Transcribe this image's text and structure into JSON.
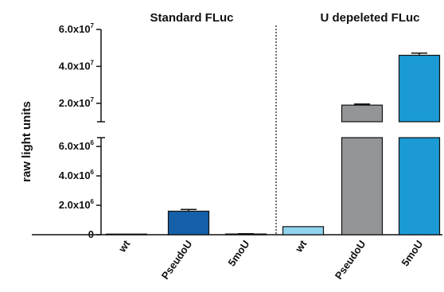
{
  "chart_data": {
    "type": "bar",
    "ylabel": "raw light units",
    "y_scale": "broken linear axis (segment break between 6.0x10^6 and 1.0x10^7)",
    "groups": [
      {
        "title": "Standard FLuc",
        "categories": [
          "wt",
          "PseudoU",
          "5moU"
        ]
      },
      {
        "title": "U depeleted FLuc",
        "categories": [
          "wt",
          "PseudoU",
          "5moU"
        ]
      }
    ],
    "categories": [
      "wt",
      "PseudoU",
      "5moU",
      "wt",
      "PseudoU",
      "5moU"
    ],
    "values": [
      0,
      1600000,
      50000,
      550000,
      19000000,
      46000000
    ],
    "errors": [
      0,
      120000,
      20000,
      0,
      600000,
      1200000
    ],
    "bar_colors": [
      "#1560a8",
      "#1560a8",
      "#1560a8",
      "#8fd3ee",
      "#929699",
      "#1b9ad6"
    ],
    "lower_segment": {
      "ylim": [
        0,
        6600000
      ],
      "ticks": [
        {
          "value": 0,
          "label": "0",
          "exp": ""
        },
        {
          "value": 2000000,
          "label": "2.0x10",
          "exp": "6"
        },
        {
          "value": 4000000,
          "label": "4.0x10",
          "exp": "6"
        },
        {
          "value": 6000000,
          "label": "6.0x10",
          "exp": "6"
        }
      ]
    },
    "upper_segment": {
      "ylim": [
        10000000,
        60000000
      ],
      "ticks": [
        {
          "value": 20000000,
          "label": "2.0x10",
          "exp": "7"
        },
        {
          "value": 40000000,
          "label": "4.0x10",
          "exp": "7"
        },
        {
          "value": 60000000,
          "label": "6.0x10",
          "exp": "7"
        }
      ]
    },
    "separator": "dotted",
    "grid": false,
    "legend": "none"
  }
}
